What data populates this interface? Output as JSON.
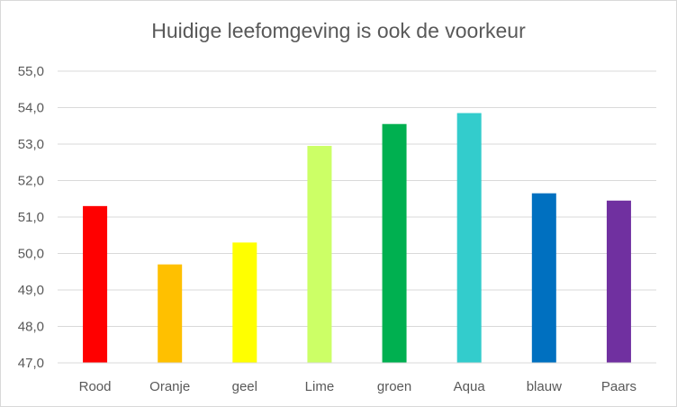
{
  "chart_data": {
    "type": "bar",
    "title": "Huidige leefomgeving is ook de voorkeur",
    "xlabel": "",
    "ylabel": "",
    "categories": [
      "Rood",
      "Oranje",
      "geel",
      "Lime",
      "groen",
      "Aqua",
      "blauw",
      "Paars"
    ],
    "values": [
      51.3,
      49.7,
      50.3,
      52.95,
      53.55,
      53.85,
      51.65,
      51.45
    ],
    "colors": [
      "#ff0000",
      "#ffc000",
      "#ffff00",
      "#ccff66",
      "#00b050",
      "#33cccc",
      "#0070c0",
      "#7030a0"
    ],
    "ylim": [
      47.0,
      55.0
    ],
    "yticks": [
      "47,0",
      "48,0",
      "49,0",
      "50,0",
      "51,0",
      "52,0",
      "53,0",
      "54,0",
      "55,0"
    ],
    "grid": true,
    "legend": "none"
  }
}
